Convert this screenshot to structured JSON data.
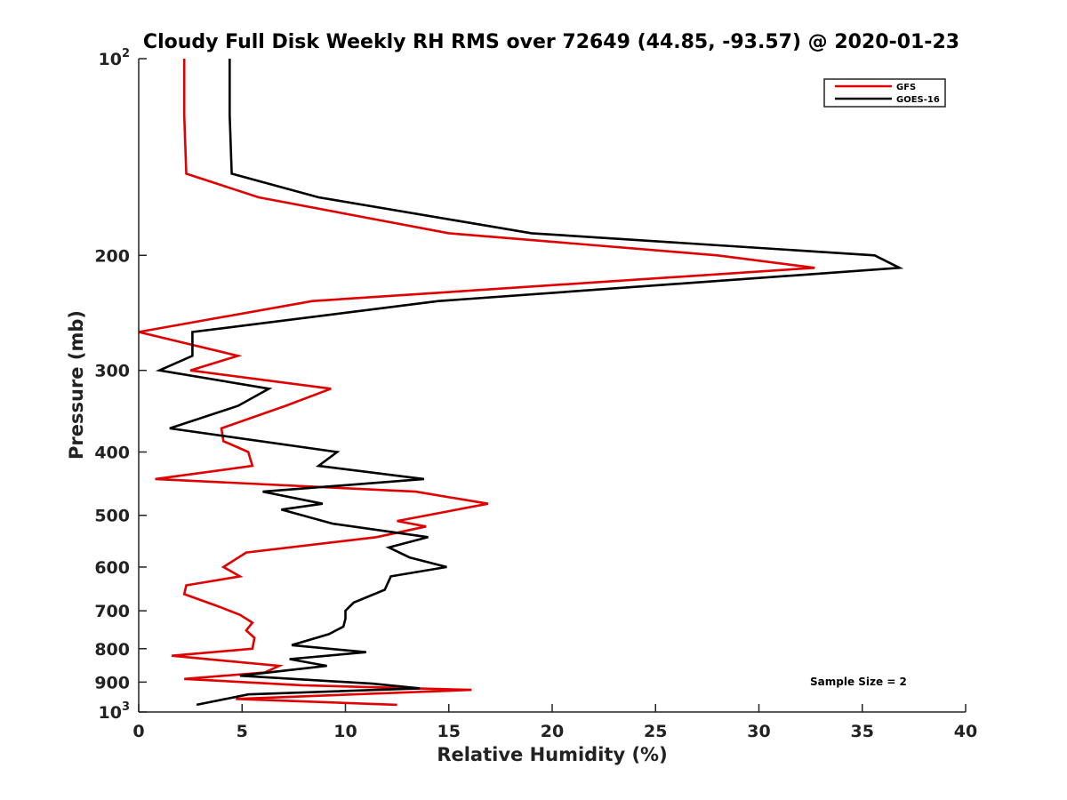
{
  "chart_data": {
    "type": "line",
    "title": "Cloudy Full Disk Weekly RH RMS over 72649 (44.85, -93.57) @ 2020-01-23",
    "xlabel": "Relative Humidity (%)",
    "ylabel": "Pressure (mb)",
    "xlim": [
      0,
      40
    ],
    "ylim": [
      100,
      1000
    ],
    "y_scale": "log",
    "y_reversed": true,
    "grid": false,
    "legend_position": "top-right",
    "xticks": [
      {
        "value": 0,
        "label": "0"
      },
      {
        "value": 5,
        "label": "5"
      },
      {
        "value": 10,
        "label": "10"
      },
      {
        "value": 15,
        "label": "15"
      },
      {
        "value": 20,
        "label": "20"
      },
      {
        "value": 25,
        "label": "25"
      },
      {
        "value": 30,
        "label": "30"
      },
      {
        "value": 35,
        "label": "35"
      },
      {
        "value": 40,
        "label": "40"
      }
    ],
    "yticks": [
      {
        "value": 100,
        "base": "10",
        "exp": "2"
      },
      {
        "value": 200,
        "label": "200"
      },
      {
        "value": 300,
        "label": "300"
      },
      {
        "value": 400,
        "label": "400"
      },
      {
        "value": 500,
        "label": "500"
      },
      {
        "value": 600,
        "label": "600"
      },
      {
        "value": 700,
        "label": "700"
      },
      {
        "value": 800,
        "label": "800"
      },
      {
        "value": 900,
        "label": "900"
      },
      {
        "value": 1000,
        "base": "10",
        "exp": "3"
      }
    ],
    "series": [
      {
        "name": "GFS",
        "color": "#e00000",
        "x": [
          2.2,
          2.2,
          2.3,
          5.8,
          15.0,
          28.0,
          32.7,
          8.4,
          0.0,
          4.8,
          2.5,
          9.3,
          7.1,
          4.0,
          4.1,
          5.3,
          5.5,
          0.8,
          13.4,
          16.9,
          12.5,
          13.9,
          11.5,
          5.2,
          4.1,
          4.9,
          2.3,
          2.2,
          3.9,
          4.9,
          5.5,
          5.2,
          5.6,
          5.5,
          1.6,
          6.8,
          6.1,
          2.2,
          7.9,
          16.1,
          4.7,
          12.5
        ],
        "y": [
          100,
          122,
          150,
          163,
          185,
          200,
          209,
          235,
          262,
          285,
          300,
          320,
          340,
          368,
          385,
          400,
          420,
          440,
          460,
          480,
          510,
          520,
          540,
          570,
          600,
          620,
          640,
          660,
          690,
          710,
          730,
          750,
          770,
          800,
          820,
          850,
          870,
          890,
          910,
          925,
          955,
          975
        ]
      },
      {
        "name": "GOES-16",
        "color": "#000000",
        "x": [
          4.4,
          4.4,
          4.5,
          8.7,
          19.0,
          35.6,
          36.8,
          14.5,
          2.6,
          2.6,
          1.0,
          6.3,
          4.8,
          1.5,
          9.6,
          8.7,
          13.8,
          6.0,
          8.9,
          6.9,
          9.4,
          14.0,
          12.1,
          13.1,
          14.9,
          12.2,
          11.9,
          10.4,
          10.0,
          10.0,
          9.9,
          9.2,
          7.4,
          11.0,
          7.3,
          9.1,
          4.9,
          11.3,
          13.6,
          5.3,
          2.8
        ],
        "y": [
          100,
          122,
          150,
          163,
          185,
          200,
          209,
          235,
          262,
          285,
          300,
          320,
          340,
          368,
          400,
          420,
          440,
          460,
          480,
          490,
          515,
          540,
          560,
          580,
          600,
          620,
          650,
          680,
          700,
          720,
          740,
          760,
          790,
          810,
          830,
          850,
          880,
          905,
          920,
          940,
          975
        ]
      }
    ],
    "annotation": "Sample Size = 2"
  }
}
